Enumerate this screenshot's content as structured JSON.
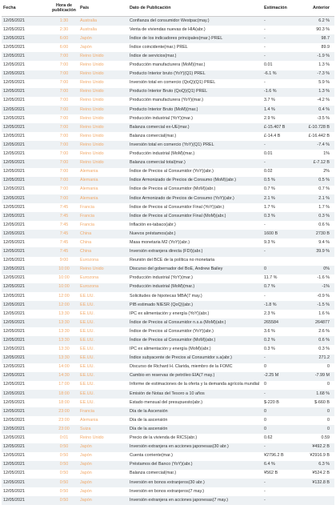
{
  "header": [
    "Fecha",
    "Hora de publicación",
    "País",
    "Dato de Publicación",
    "Estimación",
    "Anterior"
  ],
  "rows": [
    [
      "12/05/2021",
      "1:30",
      "Australia",
      "Confianza del consumidor Westpac(may.)",
      "-",
      "6.2 %"
    ],
    [
      "12/05/2021",
      "2:30",
      "Australia",
      "Venta de viviendas nuevas de HIA(abr.)",
      "-",
      "90.3 %"
    ],
    [
      "12/05/2021",
      "6:00",
      "Japón",
      "Índice de los indicadores principales(mar.) PREL",
      "-",
      "98.7"
    ],
    [
      "12/05/2021",
      "6:00",
      "Japón",
      "Índice coincidente(mar.) PREL",
      "-",
      "89.9"
    ],
    [
      "12/05/2021",
      "7:00",
      "Reino Unido",
      "Índice de servicios(mar.)",
      "-",
      "-1.9 %"
    ],
    [
      "12/05/2021",
      "7:00",
      "Reino Unido",
      "Producción manufacturera (MoM)(mar.)",
      "0.01",
      "1.3 %"
    ],
    [
      "12/05/2021",
      "7:00",
      "Reino Unido",
      "Producto Interior bruto (YoY)(Q1) PREL",
      "-6.1 %",
      "-7.3 %"
    ],
    [
      "12/05/2021",
      "7:00",
      "Reino Unido",
      "Inversión total en comercio (QoQ)(Q1) PREL",
      "-",
      "5.9 %"
    ],
    [
      "12/05/2021",
      "7:00",
      "Reino Unido",
      "Producto Interior Bruto (QoQ)(Q1) PREL",
      "-1.6 %",
      "1.3 %"
    ],
    [
      "12/05/2021",
      "7:00",
      "Reino Unido",
      "Producción manufacturera (YoY)(mar.)",
      "3.7 %",
      "-4.2 %"
    ],
    [
      "12/05/2021",
      "7:00",
      "Reino Unido",
      "Producto Interior Bruto (MoM)(mar.)",
      "1.4 %",
      "0.4 %"
    ],
    [
      "12/05/2021",
      "7:00",
      "Reino Unido",
      "Producción industrial (YoY)(mar.)",
      "2.9 %",
      "-3.5 %"
    ],
    [
      "12/05/2021",
      "7:00",
      "Reino Unido",
      "Balanza comercial ex-UE(mar.)",
      "£-15.407 B",
      "£-10.728 B"
    ],
    [
      "12/05/2021",
      "7:00",
      "Reino Unido",
      "Balanza comercial(mar.)",
      "£-14.4 B",
      "£-16.442 B"
    ],
    [
      "12/05/2021",
      "7:00",
      "Reino Unido",
      "Inversión total en comercio (YoY)(Q1) PREL",
      "-",
      "-7.4 %"
    ],
    [
      "12/05/2021",
      "7:00",
      "Reino Unido",
      "Producción industrial (MoM)(mar.)",
      "0.01",
      "1%"
    ],
    [
      "12/05/2021",
      "7:00",
      "Reino Unido",
      "Balanza comercial total(mar.)",
      "-",
      "£-7.12 B"
    ],
    [
      "12/05/2021",
      "7:00",
      "Alemania",
      "Índice de Precios al Consumidor (YoY)(abr.)",
      "0.02",
      "2%"
    ],
    [
      "12/05/2021",
      "7:00",
      "Alemania",
      "Índice Armonizado de Precios de Consumo (MoM)(abr.)",
      "0.5 %",
      "0.5 %"
    ],
    [
      "12/05/2021",
      "7:00",
      "Alemania",
      "Índice de Precios al Consumidor (MoM)(abr.)",
      "0.7 %",
      "0.7 %"
    ],
    [
      "12/05/2021",
      "7:00",
      "Alemania",
      "Índice Armonizado de Precios de Consumo (YoY)(abr.)",
      "2.1 %",
      "2.1 %"
    ],
    [
      "12/05/2021",
      "7:45",
      "Francia",
      "Índice de Precios al Consumidor Final (YoY)(abr.)",
      "1.7 %",
      "1.7 %"
    ],
    [
      "12/05/2021",
      "7:45",
      "Francia",
      "Índice de Precios al Consumidor Final (MoM)(abr.)",
      "0.3 %",
      "0.3 %"
    ],
    [
      "12/05/2021",
      "7:45",
      "Francia",
      "Inflación ex-tabaco(abr.)",
      "-",
      "0.6 %"
    ],
    [
      "12/05/2021",
      "7:45",
      "China",
      "Nuevos préstamos(abr.)",
      "1600 B",
      "2730 B"
    ],
    [
      "12/05/2021",
      "7:45",
      "China",
      "Masa monetaria M2 (YoY)(abr.)",
      "9.3 %",
      "9.4 %"
    ],
    [
      "12/05/2021",
      "7:45",
      "China",
      "Inversión extranjera directa (FDI)(abr.)",
      "-",
      "39.9 %"
    ],
    [
      "12/05/2021",
      "9:00",
      "Eurozona",
      "Reunión del BCE de la política no monetaria",
      null,
      null
    ],
    [
      "12/05/2021",
      "10:00",
      "Reino Unido",
      "Discurso del gobernador del BoE, Andrew Bailey",
      "0",
      "0%"
    ],
    [
      "12/05/2021",
      "10:00",
      "Eurozona",
      "Producción industrial (YoY)(mar.)",
      "11.7 %",
      "-1.6 %"
    ],
    [
      "12/05/2021",
      "10:00",
      "Eurozona",
      "Producción industrial (MoM)(mar.)",
      "0.7 %",
      "-1%"
    ],
    [
      "12/05/2021",
      "12:00",
      "EE.UU.",
      "Solicitudes de hipotecas MBA(7 may.)",
      "-",
      "-0.9 %"
    ],
    [
      "12/05/2021",
      "12:00",
      "EE.UU.",
      "PIB estimado NIESR (QoQ)(abr.)",
      "-1.8 %",
      "-1.5 %"
    ],
    [
      "12/05/2021",
      "13:30",
      "EE.UU.",
      "IPC ex alimentación y energía (YoY)(abr.)",
      "2.3 %",
      "1.6 %"
    ],
    [
      "12/05/2021",
      "13:30",
      "EE.UU.",
      "Índice de Precios al Consumidor n.s.a (MoM)(abr.)",
      "265584",
      "264877"
    ],
    [
      "12/05/2021",
      "13:30",
      "EE.UU.",
      "Índice de Precios al Consumidor (YoY)(abr.)",
      "3.6 %",
      "2.6 %"
    ],
    [
      "12/05/2021",
      "13:30",
      "EE.UU.",
      "Índice de Precios al Consumidor (MoM)(abr.)",
      "0.2 %",
      "0.6 %"
    ],
    [
      "12/05/2021",
      "13:30",
      "EE.UU.",
      "IPC ex alimentación y energía (MoM)(abr.)",
      "0.3 %",
      "0.3 %"
    ],
    [
      "12/05/2021",
      "13:30",
      "EE.UU.",
      "Índice subyacente de Precios al Consumidor s.a(abr.)",
      "-",
      "271.2"
    ],
    [
      "12/05/2021",
      "14:00",
      "EE.UU.",
      "Discurso de Richard H. Clarida, miembro de la FOMC",
      "0",
      "0"
    ],
    [
      "12/05/2021",
      "14:30",
      "EE.UU.",
      "Cambio en reservas de petróleo EIA(7 may.)",
      "-2.25 M",
      "-7.99 M"
    ],
    [
      "12/05/2021",
      "17:00",
      "EE.UU.",
      "Informe de estimaciones de la oferta y la demanda agrícola mundial",
      "0",
      "0"
    ],
    [
      "12/05/2021",
      "18:00",
      "EE.UU.",
      "Emisión de Notas del Tesoro a 10 años",
      "-",
      "1.68 %"
    ],
    [
      "12/05/2021",
      "18:00",
      "EE.UU.",
      "Estado mensual del presupuesto(abr.)",
      "$-220 B",
      "$-660 B"
    ],
    [
      "12/05/2021",
      "23:00",
      "Francia",
      "Día de la Ascensión",
      "0",
      "0"
    ],
    [
      "12/05/2021",
      "23:00",
      "Alemania",
      "Día de la ascensión",
      "0",
      "0"
    ],
    [
      "12/05/2021",
      "23:00",
      "Suiza",
      "Día de la ascensión",
      "0",
      "0"
    ],
    [
      "12/05/2021",
      "0:01",
      "Reino Unido",
      "Precio de la vivienda de RICS(abr.)",
      "0.62",
      "0.59"
    ],
    [
      "12/05/2021",
      "0:50",
      "Japón",
      "Inversión extranjera en acciones japonesas(30 abr.)",
      "-",
      "¥492.2 B"
    ],
    [
      "12/05/2021",
      "0:50",
      "Japón",
      "Cuenta corriente(mar.)",
      "¥2796.2 B",
      "¥2916.9 B"
    ],
    [
      "12/05/2021",
      "0:50",
      "Japón",
      "Préstamos del Banco (YoY)(abr.)",
      "6.4 %",
      "6.3 %"
    ],
    [
      "12/05/2021",
      "0:50",
      "Japón",
      "Balanza comercial(mar.)",
      "¥562 B",
      "¥524.2 B"
    ],
    [
      "12/05/2021",
      "0:50",
      "Japón",
      "Inversión en bonos extranjeros(30 abr.)",
      "-",
      "¥132.8 B"
    ],
    [
      "12/05/2021",
      "0:50",
      "Japón",
      "Inversión en bonos extranjeros(7 may.)",
      "-",
      null
    ],
    [
      "12/05/2021",
      "0:50",
      "Japón",
      "Inversión extranjera en acciones japonesas(7 may.)",
      "-",
      null
    ]
  ]
}
